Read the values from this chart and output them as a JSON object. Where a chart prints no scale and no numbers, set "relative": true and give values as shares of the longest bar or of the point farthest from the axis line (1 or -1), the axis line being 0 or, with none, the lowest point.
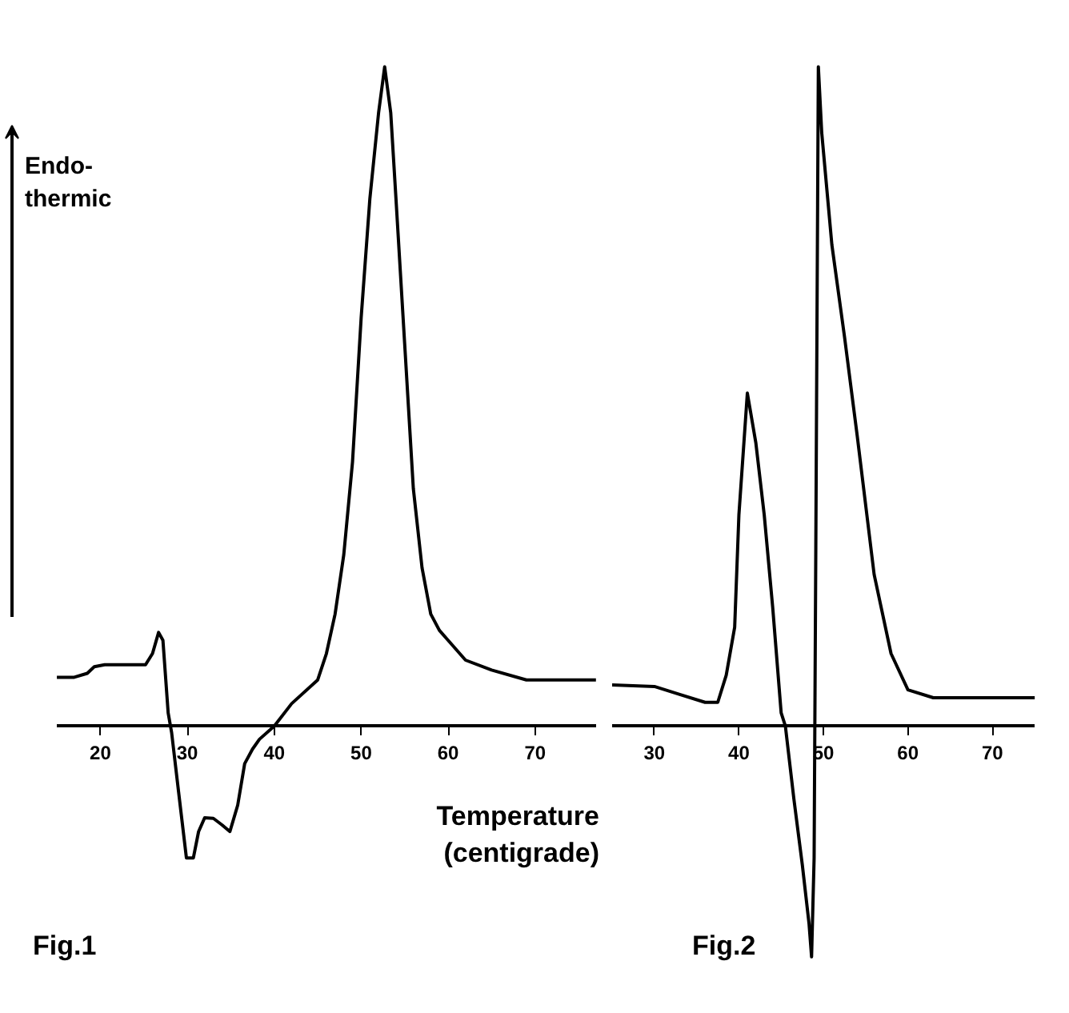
{
  "chart_data": [
    {
      "type": "line",
      "relative": true,
      "ylabel": "Endo-\nthermic",
      "xlabel": "Temperature (centigrade)",
      "annotations": [
        "Fig.1"
      ],
      "xlim": [
        15,
        77
      ],
      "xticks": [
        20,
        30,
        40,
        50,
        60,
        70
      ],
      "tick_labels": "x",
      "grid": false,
      "marker": "none",
      "line_style": "solid",
      "series": [
        {
          "color": "#000000",
          "x": [
            15,
            17,
            18.5,
            19.3,
            20.5,
            22,
            25.2,
            26,
            26.7,
            27.2,
            27.8,
            28.2,
            29,
            29.9,
            30.7,
            31.3,
            32,
            33,
            34,
            34.9,
            35.8,
            36.6,
            37.5,
            38.3,
            40,
            42,
            45,
            46,
            47,
            48,
            49,
            50,
            51,
            52,
            52.7,
            53.4,
            54,
            55,
            56,
            57,
            58,
            59,
            60,
            62,
            65,
            69,
            77
          ],
          "values": [
            0.074,
            0.074,
            0.08,
            0.09,
            0.093,
            0.093,
            0.093,
            0.11,
            0.142,
            0.13,
            0.02,
            -0.01,
            -0.1,
            -0.2,
            -0.2,
            -0.16,
            -0.139,
            -0.14,
            -0.15,
            -0.16,
            -0.12,
            -0.057,
            -0.035,
            -0.02,
            0.0,
            0.034,
            0.07,
            0.11,
            0.17,
            0.26,
            0.4,
            0.62,
            0.8,
            0.93,
            1.0,
            0.93,
            0.8,
            0.58,
            0.36,
            0.24,
            0.17,
            0.145,
            0.13,
            0.1,
            0.085,
            0.07,
            0.07
          ]
        }
      ]
    },
    {
      "type": "line",
      "relative": true,
      "annotations": [
        "Fig.2"
      ],
      "xlim": [
        25,
        75
      ],
      "xticks": [
        30,
        40,
        50,
        60,
        70
      ],
      "tick_labels": "x",
      "grid": false,
      "marker": "none",
      "line_style": "solid",
      "series": [
        {
          "color": "#000000",
          "x": [
            25,
            30,
            33,
            36,
            37.5,
            38.5,
            39.5,
            40,
            41,
            42,
            43,
            44,
            45,
            45.5,
            46.5,
            47.5,
            48.3,
            48.6,
            48.9,
            49.1,
            49.4,
            49.8,
            51,
            52.5,
            54,
            56,
            58,
            60,
            63,
            75
          ],
          "values": [
            0.0625,
            0.06,
            0.048,
            0.036,
            0.036,
            0.077,
            0.15,
            0.32,
            0.505,
            0.43,
            0.32,
            0.18,
            0.02,
            0.0,
            -0.11,
            -0.21,
            -0.3,
            -0.35,
            -0.2,
            0.27,
            1.0,
            0.9,
            0.73,
            0.59,
            0.44,
            0.23,
            0.11,
            0.055,
            0.043,
            0.043
          ]
        }
      ]
    }
  ]
}
